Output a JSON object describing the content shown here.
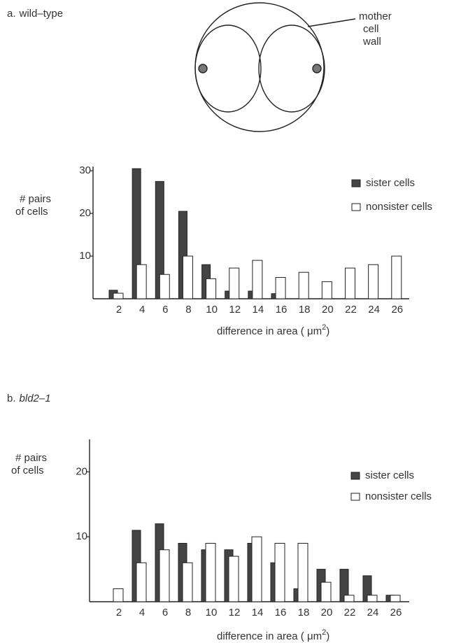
{
  "diagram": {
    "label_lines": [
      "mother",
      "cell",
      "wall"
    ]
  },
  "chart_data": [
    {
      "type": "bar",
      "panel": "a.",
      "title": "wild–type",
      "title_italic": false,
      "y_label": [
        "# pairs",
        "of cells"
      ],
      "x_label": [
        "difference in area ( μm",
        "2",
        ")"
      ],
      "categories": [
        "2",
        "4",
        "6",
        "8",
        "10",
        "12",
        "14",
        "16",
        "18",
        "20",
        "22",
        "24",
        "26"
      ],
      "series": [
        {
          "name": "sister cells",
          "color": "#444444",
          "values": [
            2,
            30.5,
            27.5,
            20.5,
            8,
            1.8,
            1.8,
            1.2,
            0,
            0,
            0,
            0,
            0
          ]
        },
        {
          "name": "nonsister cells",
          "color": "#ffffff",
          "values": [
            1.3,
            8,
            5.7,
            10,
            4.7,
            7.2,
            9,
            5,
            6.2,
            4,
            7.2,
            8,
            10
          ]
        }
      ],
      "ylim": [
        0,
        31
      ],
      "yticks": [
        10,
        20,
        30
      ],
      "legend": "upper right"
    },
    {
      "type": "bar",
      "panel": "b.",
      "title": "bld2–1",
      "title_italic": true,
      "y_label": [
        "# pairs",
        "of cells"
      ],
      "x_label": [
        "difference in area ( μm",
        "2",
        ")"
      ],
      "categories": [
        "2",
        "4",
        "6",
        "8",
        "10",
        "12",
        "14",
        "16",
        "18",
        "20",
        "22",
        "24",
        "26"
      ],
      "series": [
        {
          "name": "sister cells",
          "color": "#444444",
          "values": [
            0,
            11,
            12,
            9,
            8,
            8,
            9,
            6,
            2,
            5,
            5,
            4,
            1
          ]
        },
        {
          "name": "nonsister cells",
          "color": "#ffffff",
          "values": [
            2,
            6,
            8,
            6,
            9,
            7,
            10,
            9,
            9,
            3,
            1,
            1,
            1
          ]
        }
      ],
      "ylim": [
        0,
        25
      ],
      "yticks": [
        10,
        20
      ],
      "legend": "upper right"
    }
  ]
}
